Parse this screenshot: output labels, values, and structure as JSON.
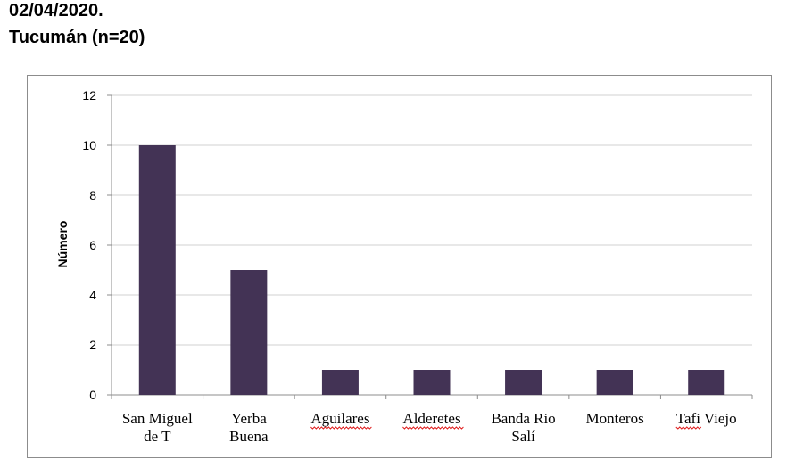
{
  "header": {
    "line1": "02/04/2020.",
    "line2": "Tucumán (n=20)"
  },
  "colors": {
    "bar": "#433355",
    "grid": "#d0d0d0",
    "axis": "#8c8c8c",
    "spellcheck_underline": "#e02020"
  },
  "chart_data": {
    "type": "bar",
    "title": "",
    "xlabel": "",
    "ylabel": "Número",
    "ylim": [
      0,
      12
    ],
    "yticks": [
      0,
      2,
      4,
      6,
      8,
      10,
      12
    ],
    "grid": true,
    "legend": "none",
    "categories": [
      {
        "lines": [
          "San Miguel",
          "de T"
        ],
        "spellcheck": false
      },
      {
        "lines": [
          "Yerba",
          "Buena"
        ],
        "spellcheck": false
      },
      {
        "lines": [
          "Aguilares"
        ],
        "spellcheck": true
      },
      {
        "lines": [
          "Alderetes"
        ],
        "spellcheck": true
      },
      {
        "lines": [
          "Banda Rio",
          "Salí"
        ],
        "spellcheck": false
      },
      {
        "lines": [
          "Monteros"
        ],
        "spellcheck": false
      },
      {
        "lines": [
          "Tafi Viejo"
        ],
        "spellcheck": "Tafi"
      }
    ],
    "values": [
      10,
      5,
      1,
      1,
      1,
      1,
      1
    ]
  }
}
